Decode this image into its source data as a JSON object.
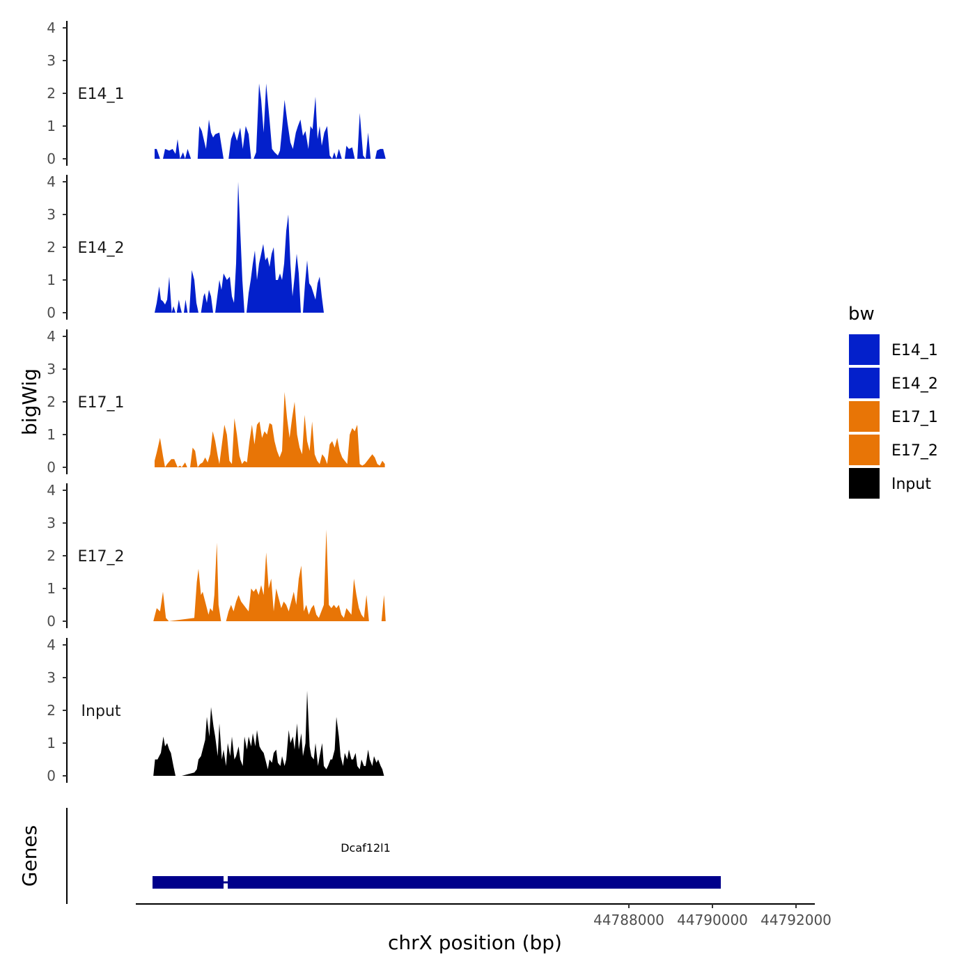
{
  "chart_data": {
    "type": "area",
    "xlabel": "chrX position (bp)",
    "ylabel": "bigWig",
    "genes_label": "Genes",
    "xlim": [
      44776200,
      44792450
    ],
    "x_ticks": [
      44788000,
      44790000,
      44792000
    ],
    "x_tick_labels": [
      "44788000",
      "44790000",
      "44792000"
    ],
    "ylim": [
      0,
      4
    ],
    "y_ticks": [
      0,
      1,
      2,
      3,
      4
    ],
    "y_tick_labels": [
      "0",
      "1",
      "2",
      "3",
      "4"
    ],
    "legend": {
      "title": "bw",
      "position": "right",
      "entries": [
        {
          "label": "E14_1",
          "color": "#0320CB"
        },
        {
          "label": "E14_2",
          "color": "#0320CB"
        },
        {
          "label": "E17_1",
          "color": "#E87506"
        },
        {
          "label": "E17_2",
          "color": "#E87506"
        },
        {
          "label": "Input",
          "color": "#000000"
        }
      ]
    },
    "series": [
      {
        "name": "E14_1",
        "color": "#0320CB",
        "x": [
          44776650,
          44776700,
          44776780,
          44776850,
          44776900,
          44777000,
          44777080,
          44777150,
          44777200,
          44777260,
          44777330,
          44777380,
          44777440,
          44777520,
          44777600,
          44777680,
          44777720,
          44777780,
          44777880,
          44777950,
          44778000,
          44778050,
          44778100,
          44778200,
          44778300,
          44778420,
          44778480,
          44778550,
          44778620,
          44778700,
          44778760,
          44778830,
          44778900,
          44778960,
          44779020,
          44779080,
          44779150,
          44779200,
          44779260,
          44779320,
          44779400,
          44779460,
          44779520,
          44779600,
          44779650,
          44779700,
          44779760,
          44779830,
          44779900,
          44779960,
          44780030,
          44780080,
          44780140,
          44780200,
          44780260,
          44780330,
          44780380,
          44780430,
          44780500,
          44780550,
          44780600,
          44780650,
          44780710,
          44780780,
          44780840,
          44780900,
          44780950,
          44781000,
          44781060,
          44781130,
          44781200,
          44781240,
          44781300,
          44781380,
          44781440,
          44781500,
          44781560,
          44781640,
          44781700,
          44781760,
          44781820,
          44781880,
          44781930,
          44781970,
          44782050,
          44782120,
          44782180
        ],
        "y": [
          0.3,
          0.3,
          0,
          0,
          0.3,
          0.25,
          0.3,
          0.15,
          0.6,
          0,
          0.2,
          0,
          0.3,
          0,
          0,
          0,
          1.0,
          0.85,
          0.3,
          1.2,
          0.8,
          0.65,
          0.75,
          0.8,
          0,
          0,
          0.6,
          0.85,
          0.55,
          0.95,
          0.3,
          1.0,
          0.75,
          0,
          0,
          0.2,
          2.3,
          1.8,
          0.8,
          2.3,
          1.2,
          0.3,
          0.2,
          0.1,
          0.25,
          0.9,
          1.8,
          1.1,
          0.5,
          0.3,
          0.8,
          1.0,
          1.2,
          0.7,
          0.85,
          0.3,
          1.0,
          0.9,
          1.9,
          0.6,
          1.0,
          0.4,
          0.8,
          1.0,
          0.1,
          0,
          0.2,
          0,
          0.3,
          0,
          0,
          0.4,
          0.3,
          0.35,
          0,
          0,
          1.4,
          0.1,
          0,
          0.8,
          0,
          0,
          0,
          0.25,
          0.3,
          0.3,
          0
        ]
      },
      {
        "name": "E14_2",
        "color": "#0320CB",
        "x": [
          44776650,
          44776700,
          44776760,
          44776800,
          44776850,
          44776900,
          44776950,
          44777000,
          44777060,
          44777100,
          44777150,
          44777180,
          44777230,
          44777260,
          44777300,
          44777350,
          44777390,
          44777440,
          44777480,
          44777540,
          44777600,
          44777650,
          44777700,
          44777760,
          44777820,
          44777850,
          44777900,
          44777950,
          44778000,
          44778050,
          44778100,
          44778150,
          44778200,
          44778250,
          44778300,
          44778380,
          44778450,
          44778500,
          44778550,
          44778600,
          44778650,
          44778700,
          44778750,
          44778800,
          44778850,
          44778900,
          44778950,
          44779000,
          44779050,
          44779100,
          44779150,
          44779200,
          44779250,
          44779300,
          44779350,
          44779400,
          44779450,
          44779500,
          44779550,
          44779600,
          44779650,
          44779700,
          44779750,
          44779800,
          44779850,
          44779900,
          44779950,
          44780000,
          44780050,
          44780100,
          44780150,
          44780200,
          44780250,
          44780300,
          44780350,
          44780400,
          44780450,
          44780500,
          44780550,
          44780600,
          44780650,
          44780700,
          44780750,
          44780800,
          44780850,
          44780900,
          44780950,
          44781000,
          44781050,
          44781100,
          44781150,
          44781200,
          44781250,
          44781300,
          44781350,
          44781400,
          44781450,
          44781500,
          44781550,
          44781600,
          44781650,
          44781700,
          44781750,
          44781800,
          44781850,
          44781920
        ],
        "y": [
          0,
          0.3,
          0.8,
          0.4,
          0.35,
          0.25,
          0.4,
          1.1,
          0,
          0.2,
          0,
          0,
          0.4,
          0.2,
          0,
          0,
          0.4,
          0,
          0,
          1.3,
          1.0,
          0.3,
          0,
          0,
          0.5,
          0.6,
          0.3,
          0.7,
          0.5,
          0,
          0,
          0.5,
          1.0,
          0.7,
          1.2,
          1.0,
          1.1,
          0.5,
          0.3,
          1.5,
          4.0,
          2.5,
          1.0,
          0,
          0,
          0.6,
          1.0,
          1.5,
          1.9,
          1.0,
          1.5,
          1.8,
          2.1,
          1.6,
          1.7,
          1.4,
          1.8,
          2.0,
          1.0,
          1.0,
          1.2,
          1.0,
          1.5,
          2.5,
          3.0,
          1.5,
          0.5,
          1.1,
          1.8,
          1.2,
          0,
          0,
          0.9,
          1.6,
          0.9,
          0.8,
          0.6,
          0.4,
          0.9,
          1.1,
          0.5,
          0,
          0,
          0,
          0,
          0,
          0,
          0,
          0,
          0,
          0,
          0,
          0,
          0,
          0,
          0,
          0,
          0,
          0,
          0,
          0,
          0,
          0,
          0,
          0,
          0
        ]
      },
      {
        "name": "E17_1",
        "color": "#E87506",
        "x": [
          44776650,
          44776700,
          44776780,
          44776850,
          44776900,
          44776950,
          44777050,
          44777120,
          44777200,
          44777260,
          44777300,
          44777380,
          44777430,
          44777500,
          44777560,
          44777620,
          44777680,
          44777740,
          44777800,
          44777860,
          44777920,
          44777980,
          44778040,
          44778100,
          44778160,
          44778200,
          44778260,
          44778320,
          44778380,
          44778440,
          44778500,
          44778560,
          44778620,
          44778680,
          44778740,
          44778800,
          44778860,
          44778920,
          44778980,
          44779040,
          44779100,
          44779160,
          44779220,
          44779280,
          44779340,
          44779400,
          44779460,
          44779520,
          44779580,
          44779640,
          44779700,
          44779760,
          44779820,
          44779880,
          44779940,
          44780000,
          44780060,
          44780120,
          44780180,
          44780240,
          44780300,
          44780360,
          44780420,
          44780480,
          44780540,
          44780600,
          44780660,
          44780720,
          44780780,
          44780840,
          44780900,
          44780960,
          44781020,
          44781080,
          44781140,
          44781200,
          44781260,
          44781320,
          44781380,
          44781440,
          44781500,
          44781560,
          44781620,
          44781680,
          44781740,
          44781800,
          44781860,
          44781920,
          44781980,
          44782040,
          44782100,
          44782160
        ],
        "y": [
          0.2,
          0.45,
          0.9,
          0.35,
          0,
          0.1,
          0.25,
          0.25,
          0,
          0.05,
          0,
          0.15,
          0,
          0,
          0.6,
          0.5,
          0,
          0.1,
          0.15,
          0.3,
          0.15,
          0.4,
          1.1,
          0.8,
          0.35,
          0.1,
          0.7,
          1.3,
          1.0,
          0.2,
          0.1,
          1.5,
          1.0,
          0.35,
          0.1,
          0.2,
          0.15,
          0.8,
          1.3,
          0.7,
          1.3,
          1.4,
          0.9,
          1.1,
          1.0,
          1.35,
          1.3,
          0.8,
          0.5,
          0.3,
          0.5,
          2.3,
          1.5,
          0.9,
          1.5,
          2.0,
          1.0,
          0.6,
          0.4,
          1.6,
          0.8,
          0.5,
          1.4,
          0.4,
          0.2,
          0.1,
          0.4,
          0.3,
          0.1,
          0.7,
          0.8,
          0.6,
          0.9,
          0.5,
          0.3,
          0.2,
          0.1,
          1.0,
          1.2,
          1.1,
          1.3,
          0.1,
          0.05,
          0.1,
          0.2,
          0.3,
          0.4,
          0.3,
          0.1,
          0.05,
          0.2,
          0.1
        ]
      },
      {
        "name": "E17_2",
        "color": "#E87506",
        "x": [
          44776620,
          44776700,
          44776780,
          44776850,
          44776920,
          44776990,
          44777600,
          44777660,
          44777700,
          44777760,
          44777800,
          44777860,
          44777940,
          44777980,
          44778040,
          44778080,
          44778140,
          44778180,
          44778240,
          44778300,
          44778360,
          44778420,
          44778480,
          44778540,
          44778600,
          44778660,
          44778720,
          44778780,
          44778840,
          44778900,
          44778960,
          44779020,
          44779080,
          44779140,
          44779200,
          44779260,
          44779320,
          44779380,
          44779440,
          44779500,
          44779560,
          44779620,
          44779680,
          44779740,
          44779800,
          44779860,
          44779920,
          44779980,
          44780040,
          44780100,
          44780160,
          44780220,
          44780280,
          44780340,
          44780400,
          44780460,
          44780520,
          44780580,
          44780640,
          44780700,
          44780760,
          44780820,
          44780880,
          44780940,
          44781000,
          44781060,
          44781120,
          44781180,
          44781240,
          44781300,
          44781360,
          44781420,
          44781480,
          44781540,
          44781600,
          44781660,
          44781720,
          44781780,
          44781840,
          44781900,
          44781960,
          44782020,
          44782080,
          44782140,
          44782180
        ],
        "y": [
          0,
          0.4,
          0.3,
          0.9,
          0.1,
          0,
          0.1,
          1.2,
          1.6,
          0.8,
          0.9,
          0.6,
          0.2,
          0.4,
          0.3,
          0.8,
          2.4,
          0.5,
          0,
          0,
          0,
          0.3,
          0.5,
          0.3,
          0.6,
          0.8,
          0.6,
          0.5,
          0.4,
          0.3,
          1.0,
          0.9,
          1.0,
          0.8,
          1.1,
          0.8,
          2.1,
          1.0,
          1.3,
          0.3,
          1.0,
          0.7,
          0.4,
          0.6,
          0.5,
          0.3,
          0.6,
          0.9,
          0.5,
          1.3,
          1.7,
          0.3,
          0.5,
          0.2,
          0.4,
          0.5,
          0.2,
          0.1,
          0.3,
          0.5,
          2.8,
          0.5,
          0.4,
          0.5,
          0.4,
          0.5,
          0.2,
          0.1,
          0.4,
          0.3,
          0.2,
          1.3,
          0.8,
          0.4,
          0.2,
          0.1,
          0.8,
          0,
          0,
          0,
          0,
          0,
          0,
          0.8,
          0
        ]
      },
      {
        "name": "Input",
        "color": "#000000",
        "x": [
          44776620,
          44776660,
          44776720,
          44776760,
          44776800,
          44776860,
          44776900,
          44776950,
          44777000,
          44777040,
          44777100,
          44777150,
          44777200,
          44777250,
          44777300,
          44777600,
          44777660,
          44777700,
          44777760,
          44777800,
          44777860,
          44777900,
          44777960,
          44778000,
          44778060,
          44778100,
          44778160,
          44778200,
          44778260,
          44778300,
          44778360,
          44778400,
          44778460,
          44778500,
          44778560,
          44778600,
          44778660,
          44778700,
          44778760,
          44778800,
          44778860,
          44778900,
          44778960,
          44779000,
          44779060,
          44779100,
          44779160,
          44779200,
          44779260,
          44779300,
          44779360,
          44779400,
          44779460,
          44779500,
          44779560,
          44779600,
          44779660,
          44779700,
          44779760,
          44779800,
          44779860,
          44779900,
          44779960,
          44780000,
          44780060,
          44780100,
          44780160,
          44780200,
          44780260,
          44780300,
          44780360,
          44780400,
          44780460,
          44780500,
          44780560,
          44780600,
          44780660,
          44780700,
          44780760,
          44780800,
          44780860,
          44780900,
          44780960,
          44781000,
          44781060,
          44781100,
          44781160,
          44781200,
          44781260,
          44781300,
          44781360,
          44781400,
          44781460,
          44781500,
          44781560,
          44781600,
          44781660,
          44781700,
          44781760,
          44781800,
          44781860,
          44781900,
          44781960,
          44782000,
          44782060,
          44782100,
          44782140
        ],
        "y": [
          0,
          0.5,
          0.5,
          0.6,
          0.7,
          1.2,
          0.9,
          1.0,
          0.8,
          0.7,
          0.3,
          0,
          0,
          0,
          0,
          0.1,
          0.2,
          0.5,
          0.6,
          0.8,
          1.1,
          1.8,
          1.2,
          2.1,
          1.5,
          1.2,
          0.6,
          1.6,
          0.5,
          0.8,
          0.3,
          1.0,
          0.6,
          1.2,
          0.5,
          0.6,
          0.9,
          0.5,
          0.3,
          1.2,
          0.8,
          1.2,
          0.9,
          1.3,
          0.9,
          1.4,
          0.9,
          0.8,
          0.7,
          0.5,
          0.2,
          0.5,
          0.4,
          0.7,
          0.8,
          0.4,
          0.3,
          0.6,
          0.3,
          0.5,
          1.4,
          1.0,
          1.2,
          0.8,
          1.6,
          0.8,
          1.3,
          0.6,
          1.0,
          2.6,
          0.9,
          0.6,
          0.5,
          1.0,
          0.3,
          0.6,
          1.0,
          0.3,
          0.2,
          0.3,
          0.5,
          0.5,
          0.8,
          1.8,
          1.2,
          0.6,
          0.3,
          0.7,
          0.5,
          0.8,
          0.5,
          0.5,
          0.7,
          0.3,
          0.2,
          0.5,
          0.3,
          0.3,
          0.8,
          0.5,
          0.3,
          0.6,
          0.4,
          0.5,
          0.3,
          0.2,
          0
        ]
      }
    ],
    "genes": [
      {
        "name": "Dcaf12l1",
        "start": 44776600,
        "end": 44790200,
        "exons": [
          [
            44776600,
            44778300
          ],
          [
            44778400,
            44790200
          ]
        ],
        "color": "#00008B"
      }
    ]
  }
}
